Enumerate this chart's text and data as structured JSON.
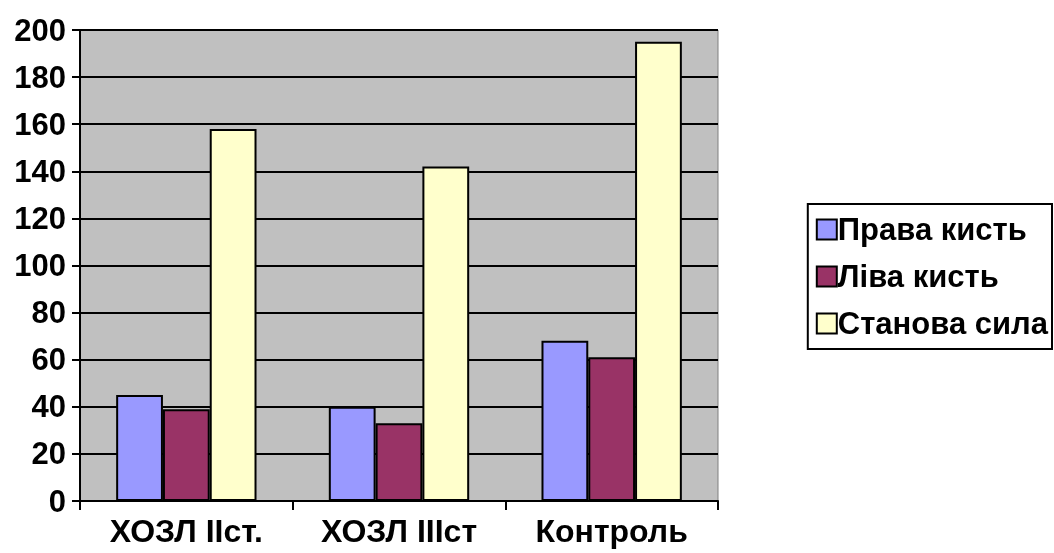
{
  "chart_data": {
    "type": "bar",
    "categories": [
      "ХОЗЛ IIст.",
      "ХОЗЛ IIIст",
      "Контроль"
    ],
    "series": [
      {
        "name": "Права кисть",
        "color": "#9999ff",
        "values": [
          45,
          40,
          68
        ]
      },
      {
        "name": "Ліва кисть",
        "color": "#993366",
        "values": [
          39,
          33,
          61
        ]
      },
      {
        "name": "Станова сила",
        "color": "#ffffcc",
        "values": [
          158,
          142,
          195
        ]
      }
    ],
    "ylim": [
      0,
      200
    ],
    "yticks": [
      0,
      20,
      40,
      60,
      80,
      100,
      120,
      140,
      160,
      180,
      200
    ],
    "grid": "y",
    "legend": "right"
  }
}
